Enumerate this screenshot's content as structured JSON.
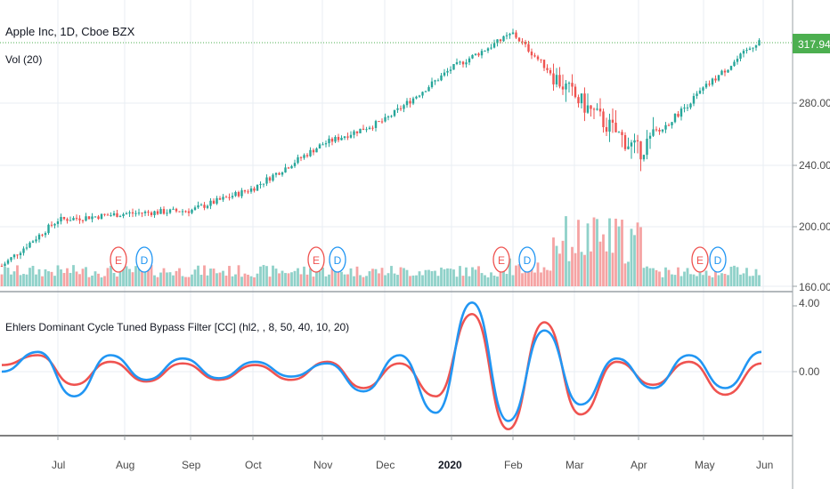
{
  "header": {
    "symbol_title": "Apple Inc, 1D, Cboe BZX",
    "volume_title": "Vol (20)",
    "indicator_title": "Ehlers Dominant Cycle Tuned Bypass Filter [CC] (hl2, , 8, 50, 40, 10, 20)"
  },
  "price_badge": {
    "value": "317.94",
    "color": "#4caf50"
  },
  "price_axis": {
    "ticks": [
      "280.00",
      "240.00",
      "200.00",
      "160.00"
    ]
  },
  "indicator_axis": {
    "ticks": [
      "4.00",
      "0.00"
    ]
  },
  "time_axis": {
    "labels": [
      "Jul",
      "Aug",
      "Sep",
      "Oct",
      "Nov",
      "Dec",
      "2020",
      "Feb",
      "Mar",
      "Apr",
      "May",
      "Jun"
    ]
  },
  "colors": {
    "up": "#26a69a",
    "down": "#ef5350",
    "volume_up": "#8fd1c9",
    "volume_down": "#f5a3a3",
    "fast_line": "#2196f3",
    "slow_line": "#ef5350",
    "grid": "#e8edf3",
    "last_price_line": "#4caf50"
  },
  "event_markers": [
    {
      "letter": "E",
      "kind": "earnings",
      "color": "#ef5350"
    },
    {
      "letter": "D",
      "kind": "dividend",
      "color": "#2196f3"
    },
    {
      "letter": "E",
      "kind": "earnings",
      "color": "#ef5350"
    },
    {
      "letter": "D",
      "kind": "dividend",
      "color": "#2196f3"
    },
    {
      "letter": "E",
      "kind": "earnings",
      "color": "#ef5350"
    },
    {
      "letter": "D",
      "kind": "dividend",
      "color": "#2196f3"
    },
    {
      "letter": "E",
      "kind": "earnings",
      "color": "#ef5350"
    },
    {
      "letter": "D",
      "kind": "dividend",
      "color": "#2196f3"
    }
  ],
  "chart_data": {
    "type": "line",
    "title": "Apple Inc, 1D, Cboe BZX",
    "price_ylim": [
      160,
      330
    ],
    "last_price": 317.94,
    "price_series": {
      "name": "",
      "dates": [
        "Jun",
        "Jul",
        "Aug",
        "Sep",
        "Oct",
        "Nov",
        "Dec",
        "2020",
        "Feb",
        "Mar",
        "Apr",
        "May",
        "Jun"
      ],
      "values": [
        172,
        202,
        206,
        208,
        222,
        250,
        265,
        298,
        320,
        280,
        245,
        285,
        318
      ]
    },
    "indicator_ylim": [
      -5,
      5
    ],
    "indicator_series": [
      {
        "name": "",
        "values": [
          0.0,
          1.2,
          -1.5,
          1.0,
          -0.5,
          0.8,
          -0.4,
          0.6,
          -0.3,
          0.5,
          -1.2,
          1.0,
          -2.5,
          4.2,
          -3.0,
          2.5,
          -2.0,
          0.8,
          -1.0,
          1.0,
          -1.0,
          1.2
        ]
      },
      {
        "name": "",
        "values": [
          0.4,
          1.0,
          -0.8,
          0.6,
          -0.6,
          0.5,
          -0.5,
          0.4,
          -0.5,
          0.6,
          -1.0,
          0.5,
          -1.5,
          3.5,
          -3.5,
          3.0,
          -2.6,
          0.6,
          -0.8,
          0.6,
          -1.4,
          0.5
        ]
      }
    ],
    "legend": "none",
    "grid": true
  }
}
